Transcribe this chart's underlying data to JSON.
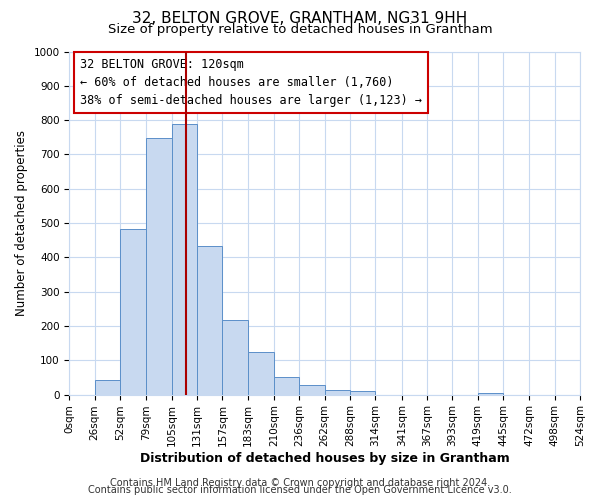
{
  "title1": "32, BELTON GROVE, GRANTHAM, NG31 9HH",
  "title2": "Size of property relative to detached houses in Grantham",
  "xlabel": "Distribution of detached houses by size in Grantham",
  "ylabel": "Number of detached properties",
  "bin_labels": [
    "0sqm",
    "26sqm",
    "52sqm",
    "79sqm",
    "105sqm",
    "131sqm",
    "157sqm",
    "183sqm",
    "210sqm",
    "236sqm",
    "262sqm",
    "288sqm",
    "314sqm",
    "341sqm",
    "367sqm",
    "393sqm",
    "419sqm",
    "445sqm",
    "472sqm",
    "498sqm",
    "524sqm"
  ],
  "bin_edges": [
    0,
    26,
    52,
    79,
    105,
    131,
    157,
    183,
    210,
    236,
    262,
    288,
    314,
    341,
    367,
    393,
    419,
    445,
    472,
    498,
    524
  ],
  "bar_heights": [
    0,
    44,
    483,
    748,
    790,
    433,
    216,
    125,
    52,
    28,
    14,
    10,
    0,
    0,
    0,
    0,
    6,
    0,
    0,
    0
  ],
  "bar_color": "#c8d9f0",
  "bar_edge_color": "#5b8fc9",
  "ylim": [
    0,
    1000
  ],
  "yticks": [
    0,
    100,
    200,
    300,
    400,
    500,
    600,
    700,
    800,
    900,
    1000
  ],
  "vline_x": 120,
  "vline_color": "#aa0000",
  "annotation_text": "32 BELTON GROVE: 120sqm\n← 60% of detached houses are smaller (1,760)\n38% of semi-detached houses are larger (1,123) →",
  "annotation_box_color": "#ffffff",
  "annotation_box_edgecolor": "#cc0000",
  "footer1": "Contains HM Land Registry data © Crown copyright and database right 2024.",
  "footer2": "Contains public sector information licensed under the Open Government Licence v3.0.",
  "bg_color": "#ffffff",
  "grid_color": "#c8d9f0",
  "title1_fontsize": 11,
  "title2_fontsize": 9.5,
  "xlabel_fontsize": 9,
  "ylabel_fontsize": 8.5,
  "tick_fontsize": 7.5,
  "footer_fontsize": 7,
  "annot_fontsize": 8.5
}
